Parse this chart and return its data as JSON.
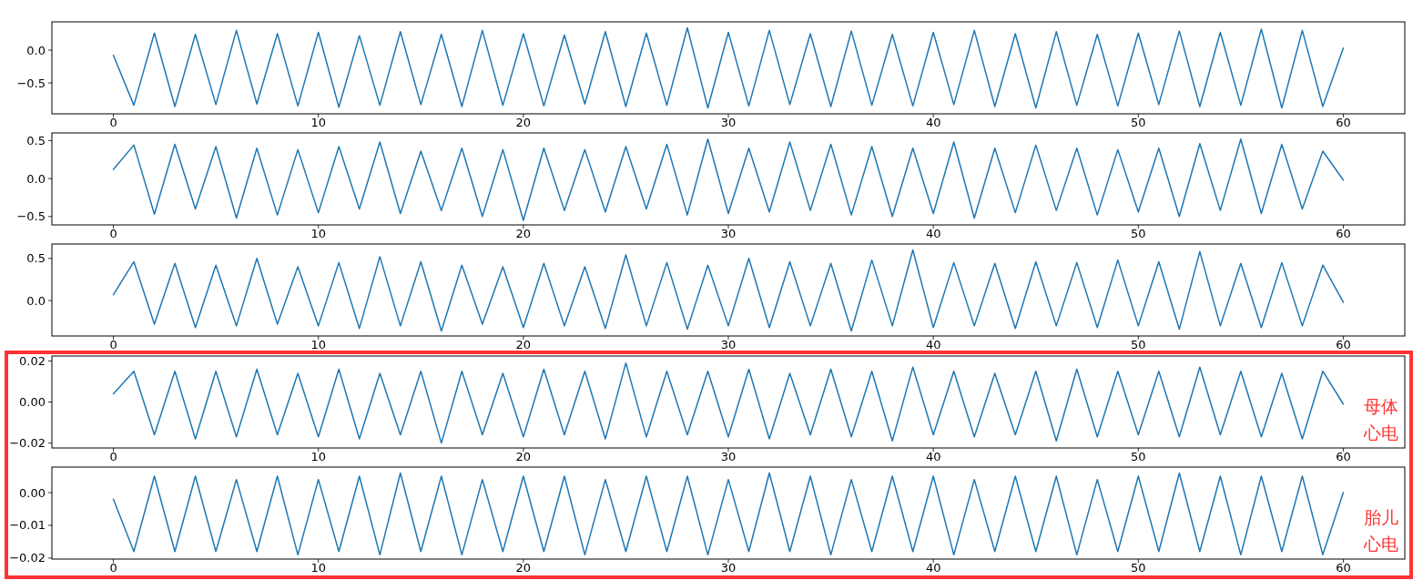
{
  "chart_data": [
    {
      "type": "line",
      "x": [
        0,
        1,
        2,
        3,
        4,
        5,
        6,
        7,
        8,
        9,
        10,
        11,
        12,
        13,
        14,
        15,
        16,
        17,
        18,
        19,
        20,
        21,
        22,
        23,
        24,
        25,
        26,
        27,
        28,
        29,
        30,
        31,
        32,
        33,
        34,
        35,
        36,
        37,
        38,
        39,
        40,
        41,
        42,
        43,
        44,
        45,
        46,
        47,
        48,
        49,
        50,
        51,
        52,
        53,
        54,
        55,
        56,
        57,
        58,
        59,
        60
      ],
      "series": [
        {
          "color": "#1f77b4",
          "values": [
            -0.08,
            -0.84,
            0.26,
            -0.86,
            0.24,
            -0.83,
            0.3,
            -0.82,
            0.25,
            -0.85,
            0.27,
            -0.87,
            0.22,
            -0.84,
            0.28,
            -0.83,
            0.24,
            -0.86,
            0.3,
            -0.84,
            0.25,
            -0.85,
            0.23,
            -0.82,
            0.28,
            -0.86,
            0.26,
            -0.84,
            0.34,
            -0.88,
            0.27,
            -0.85,
            0.3,
            -0.83,
            0.25,
            -0.86,
            0.29,
            -0.84,
            0.24,
            -0.85,
            0.27,
            -0.83,
            0.3,
            -0.86,
            0.25,
            -0.88,
            0.28,
            -0.84,
            0.24,
            -0.85,
            0.26,
            -0.83,
            0.29,
            -0.86,
            0.27,
            -0.84,
            0.32,
            -0.88,
            0.3,
            -0.86,
            0.03
          ]
        }
      ],
      "xlim": [
        -3,
        63
      ],
      "xticks": [
        0,
        10,
        20,
        30,
        40,
        50,
        60
      ],
      "ylim": [
        -0.97,
        0.43
      ],
      "yticks": [
        {
          "value": -0.5,
          "label": "−0.5"
        },
        {
          "value": 0,
          "label": "0.0"
        }
      ]
    },
    {
      "type": "line",
      "x": [
        0,
        1,
        2,
        3,
        4,
        5,
        6,
        7,
        8,
        9,
        10,
        11,
        12,
        13,
        14,
        15,
        16,
        17,
        18,
        19,
        20,
        21,
        22,
        23,
        24,
        25,
        26,
        27,
        28,
        29,
        30,
        31,
        32,
        33,
        34,
        35,
        36,
        37,
        38,
        39,
        40,
        41,
        42,
        43,
        44,
        45,
        46,
        47,
        48,
        49,
        50,
        51,
        52,
        53,
        54,
        55,
        56,
        57,
        58,
        59,
        60
      ],
      "series": [
        {
          "color": "#1f77b4",
          "values": [
            0.12,
            0.44,
            -0.47,
            0.45,
            -0.4,
            0.42,
            -0.52,
            0.4,
            -0.48,
            0.38,
            -0.45,
            0.42,
            -0.4,
            0.48,
            -0.46,
            0.36,
            -0.42,
            0.4,
            -0.5,
            0.38,
            -0.55,
            0.4,
            -0.42,
            0.38,
            -0.44,
            0.42,
            -0.4,
            0.45,
            -0.48,
            0.52,
            -0.46,
            0.4,
            -0.44,
            0.48,
            -0.42,
            0.45,
            -0.48,
            0.42,
            -0.5,
            0.4,
            -0.46,
            0.48,
            -0.52,
            0.4,
            -0.45,
            0.44,
            -0.42,
            0.4,
            -0.48,
            0.38,
            -0.44,
            0.4,
            -0.5,
            0.46,
            -0.42,
            0.52,
            -0.46,
            0.45,
            -0.4,
            0.36,
            -0.02
          ]
        }
      ],
      "xlim": [
        -3,
        63
      ],
      "xticks": [
        0,
        10,
        20,
        30,
        40,
        50,
        60
      ],
      "ylim": [
        -0.61,
        0.6
      ],
      "yticks": [
        {
          "value": -0.5,
          "label": "−0.5"
        },
        {
          "value": 0,
          "label": "0.0"
        },
        {
          "value": 0.5,
          "label": "0.5"
        }
      ]
    },
    {
      "type": "line",
      "x": [
        0,
        1,
        2,
        3,
        4,
        5,
        6,
        7,
        8,
        9,
        10,
        11,
        12,
        13,
        14,
        15,
        16,
        17,
        18,
        19,
        20,
        21,
        22,
        23,
        24,
        25,
        26,
        27,
        28,
        29,
        30,
        31,
        32,
        33,
        34,
        35,
        36,
        37,
        38,
        39,
        40,
        41,
        42,
        43,
        44,
        45,
        46,
        47,
        48,
        49,
        50,
        51,
        52,
        53,
        54,
        55,
        56,
        57,
        58,
        59,
        60
      ],
      "series": [
        {
          "color": "#1f77b4",
          "values": [
            0.07,
            0.46,
            -0.28,
            0.44,
            -0.32,
            0.42,
            -0.3,
            0.5,
            -0.28,
            0.4,
            -0.3,
            0.45,
            -0.33,
            0.52,
            -0.3,
            0.46,
            -0.36,
            0.42,
            -0.28,
            0.4,
            -0.32,
            0.44,
            -0.3,
            0.4,
            -0.33,
            0.54,
            -0.3,
            0.45,
            -0.34,
            0.42,
            -0.3,
            0.5,
            -0.32,
            0.46,
            -0.3,
            0.44,
            -0.36,
            0.48,
            -0.3,
            0.6,
            -0.32,
            0.45,
            -0.3,
            0.44,
            -0.33,
            0.46,
            -0.3,
            0.45,
            -0.32,
            0.48,
            -0.3,
            0.46,
            -0.34,
            0.58,
            -0.3,
            0.44,
            -0.32,
            0.45,
            -0.3,
            0.42,
            -0.02
          ]
        }
      ],
      "xlim": [
        -3,
        63
      ],
      "xticks": [
        0,
        10,
        20,
        30,
        40,
        50,
        60
      ],
      "ylim": [
        -0.42,
        0.67
      ],
      "yticks": [
        {
          "value": 0,
          "label": "0.0"
        },
        {
          "value": 0.5,
          "label": "0.5"
        }
      ]
    },
    {
      "type": "line",
      "x": [
        0,
        1,
        2,
        3,
        4,
        5,
        6,
        7,
        8,
        9,
        10,
        11,
        12,
        13,
        14,
        15,
        16,
        17,
        18,
        19,
        20,
        21,
        22,
        23,
        24,
        25,
        26,
        27,
        28,
        29,
        30,
        31,
        32,
        33,
        34,
        35,
        36,
        37,
        38,
        39,
        40,
        41,
        42,
        43,
        44,
        45,
        46,
        47,
        48,
        49,
        50,
        51,
        52,
        53,
        54,
        55,
        56,
        57,
        58,
        59,
        60
      ],
      "series": [
        {
          "color": "#1f77b4",
          "values": [
            0.004,
            0.015,
            -0.016,
            0.015,
            -0.018,
            0.015,
            -0.017,
            0.016,
            -0.016,
            0.014,
            -0.017,
            0.016,
            -0.018,
            0.014,
            -0.016,
            0.015,
            -0.02,
            0.015,
            -0.016,
            0.014,
            -0.017,
            0.016,
            -0.016,
            0.015,
            -0.018,
            0.019,
            -0.017,
            0.015,
            -0.016,
            0.015,
            -0.017,
            0.016,
            -0.018,
            0.014,
            -0.016,
            0.016,
            -0.017,
            0.015,
            -0.019,
            0.017,
            -0.016,
            0.015,
            -0.017,
            0.014,
            -0.016,
            0.015,
            -0.019,
            0.016,
            -0.017,
            0.015,
            -0.016,
            0.015,
            -0.017,
            0.017,
            -0.016,
            0.015,
            -0.017,
            0.014,
            -0.018,
            0.015,
            -0.001
          ]
        }
      ],
      "xlim": [
        -3,
        63
      ],
      "xticks": [
        0,
        10,
        20,
        30,
        40,
        50,
        60
      ],
      "ylim": [
        -0.0224,
        0.0224
      ],
      "yticks": [
        {
          "value": -0.02,
          "label": "−0.02"
        },
        {
          "value": 0,
          "label": "0.00"
        },
        {
          "value": 0.02,
          "label": "0.02"
        }
      ],
      "annotations": [
        "母体心电"
      ]
    },
    {
      "type": "line",
      "x": [
        0,
        1,
        2,
        3,
        4,
        5,
        6,
        7,
        8,
        9,
        10,
        11,
        12,
        13,
        14,
        15,
        16,
        17,
        18,
        19,
        20,
        21,
        22,
        23,
        24,
        25,
        26,
        27,
        28,
        29,
        30,
        31,
        32,
        33,
        34,
        35,
        36,
        37,
        38,
        39,
        40,
        41,
        42,
        43,
        44,
        45,
        46,
        47,
        48,
        49,
        50,
        51,
        52,
        53,
        54,
        55,
        56,
        57,
        58,
        59,
        60
      ],
      "series": [
        {
          "color": "#1f77b4",
          "values": [
            -0.002,
            -0.018,
            0.005,
            -0.018,
            0.005,
            -0.018,
            0.004,
            -0.018,
            0.005,
            -0.019,
            0.004,
            -0.018,
            0.005,
            -0.019,
            0.006,
            -0.018,
            0.005,
            -0.019,
            0.004,
            -0.018,
            0.005,
            -0.018,
            0.005,
            -0.019,
            0.004,
            -0.018,
            0.005,
            -0.018,
            0.005,
            -0.019,
            0.004,
            -0.018,
            0.006,
            -0.018,
            0.005,
            -0.019,
            0.004,
            -0.018,
            0.005,
            -0.018,
            0.005,
            -0.019,
            0.004,
            -0.018,
            0.005,
            -0.018,
            0.005,
            -0.019,
            0.004,
            -0.018,
            0.005,
            -0.018,
            0.006,
            -0.018,
            0.005,
            -0.019,
            0.005,
            -0.018,
            0.005,
            -0.019,
            0.0
          ]
        }
      ],
      "xlim": [
        -3,
        63
      ],
      "xticks": [
        0,
        10,
        20,
        30,
        40,
        50,
        60
      ],
      "ylim": [
        -0.0203,
        0.0078
      ],
      "yticks": [
        {
          "value": -0.02,
          "label": "−0.02"
        },
        {
          "value": -0.01,
          "label": "−0.01"
        },
        {
          "value": 0,
          "label": "0.00"
        }
      ],
      "annotations": [
        "胎儿心电"
      ]
    }
  ]
}
